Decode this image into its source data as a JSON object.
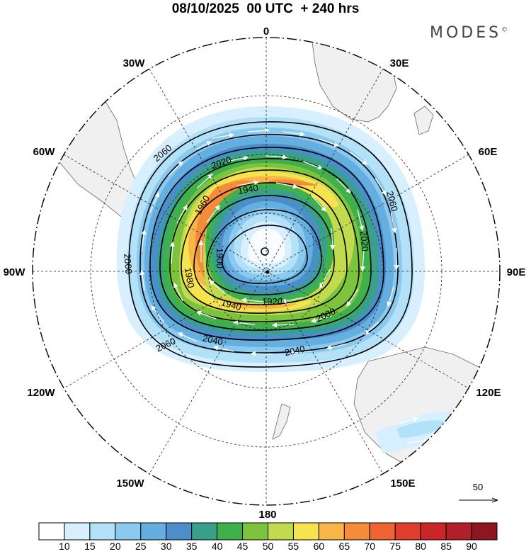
{
  "header": {
    "title": "08/10/2025  00 UTC  + 240 hrs",
    "logo": "MODES",
    "logo_mark": "©"
  },
  "map": {
    "projection": "south-polar-stereographic",
    "longitude_labels": [
      "0",
      "30E",
      "60E",
      "90E",
      "120E",
      "150E",
      "180",
      "150W",
      "120W",
      "90W",
      "60W",
      "30W"
    ],
    "contour_labels": [
      "2060",
      "2020",
      "1940",
      "1960",
      "1900",
      "2060",
      "2020",
      "2060",
      "1980",
      "1920",
      "1940",
      "2000",
      "2040",
      "2060",
      "2040"
    ],
    "wind_scale_label": "50",
    "land_color": "#f0f0f0",
    "coast_color": "#555555"
  },
  "colorbar": {
    "labels": [
      "10",
      "15",
      "20",
      "25",
      "30",
      "35",
      "40",
      "45",
      "50",
      "55",
      "60",
      "65",
      "70",
      "75",
      "80",
      "85",
      "90"
    ],
    "colors": [
      "#ffffff",
      "#d8efff",
      "#b2e1f8",
      "#8cc9ef",
      "#64aee0",
      "#4a8fc9",
      "#3aa08a",
      "#3fb04c",
      "#7cc43e",
      "#c2da4e",
      "#f6e44e",
      "#f8b548",
      "#f58c3a",
      "#ee6532",
      "#e03e2a",
      "#c9262a",
      "#b01f2a",
      "#8e1620"
    ]
  }
}
